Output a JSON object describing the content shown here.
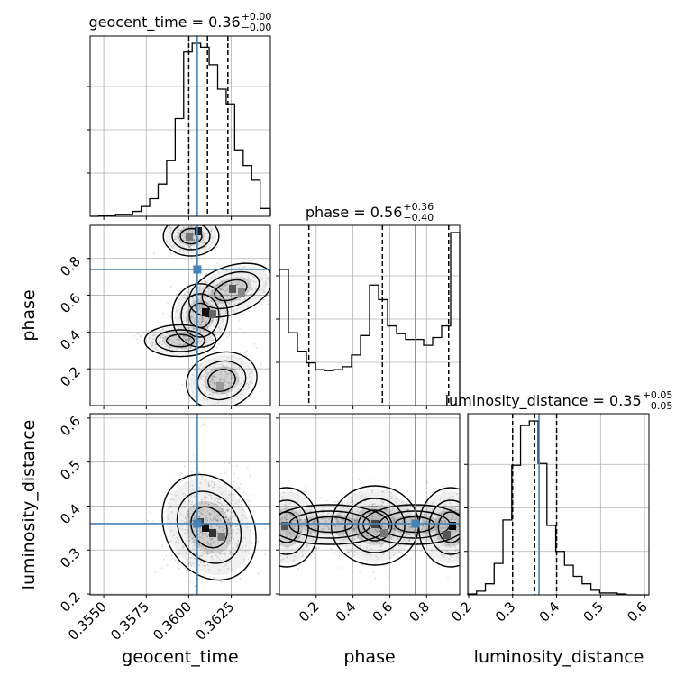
{
  "chart_data": {
    "type": "corner",
    "params": [
      "geocent_time",
      "phase",
      "luminosity_distance"
    ],
    "axis_labels": {
      "geocent_time": "geocent_time",
      "phase": "phase",
      "luminosity_distance": "luminosity_distance"
    },
    "ranges": {
      "geocent_time": [
        0.3542,
        0.3648
      ],
      "phase": [
        0.0,
        0.98
      ],
      "luminosity_distance": [
        0.198,
        0.61
      ]
    },
    "truths": {
      "geocent_time": 0.3605,
      "phase": 0.74,
      "luminosity_distance": 0.36
    },
    "ticks": {
      "geocent_time": {
        "values": [
          0.355,
          0.3575,
          0.36,
          0.3625
        ],
        "labels": [
          "0.3550",
          "0.3575",
          "0.3600",
          "0.3625"
        ]
      },
      "phase": {
        "values": [
          0.2,
          0.4,
          0.6,
          0.8
        ],
        "labels": [
          "0.2",
          "0.4",
          "0.6",
          "0.8"
        ]
      },
      "luminosity_distance": {
        "values": [
          0.2,
          0.3,
          0.4,
          0.5,
          0.6
        ],
        "labels": [
          "0.2",
          "0.3",
          "0.4",
          "0.5",
          "0.6"
        ]
      }
    },
    "titles": {
      "geocent_time": {
        "main": "geocent_time = 0.36",
        "sup": "+0.00",
        "sub": "−0.00"
      },
      "phase": {
        "main": "phase = 0.56",
        "sup": "+0.36",
        "sub": "−0.40"
      },
      "luminosity_distance": {
        "main": "luminosity_distance = 0.35",
        "sup": "+0.05",
        "sub": "−0.05"
      }
    },
    "quantiles": {
      "geocent_time": [
        0.36,
        0.3611,
        0.3623
      ],
      "phase": [
        0.16,
        0.56,
        0.92
      ],
      "luminosity_distance": [
        0.3,
        0.35,
        0.4
      ]
    },
    "histograms": {
      "geocent_time": {
        "edges": [
          0.3542,
          0.3547,
          0.3552,
          0.3557,
          0.3562,
          0.3567,
          0.3572,
          0.3577,
          0.3582,
          0.3587,
          0.3592,
          0.3597,
          0.3602,
          0.3607,
          0.3612,
          0.3617,
          0.3622,
          0.3627,
          0.3632,
          0.3637,
          0.3642,
          0.3648
        ],
        "counts": [
          0,
          1,
          1,
          2,
          2,
          5,
          10,
          18,
          33,
          57,
          100,
          168,
          177,
          173,
          155,
          130,
          115,
          68,
          52,
          37,
          8
        ]
      },
      "phase": {
        "edges": [
          0.0,
          0.049,
          0.098,
          0.147,
          0.196,
          0.245,
          0.294,
          0.343,
          0.392,
          0.441,
          0.49,
          0.539,
          0.588,
          0.637,
          0.686,
          0.735,
          0.784,
          0.833,
          0.882,
          0.931,
          0.98
        ],
        "counts": [
          140,
          75,
          56,
          44,
          37,
          36,
          37,
          40,
          52,
          72,
          124,
          109,
          82,
          74,
          68,
          68,
          62,
          70,
          82,
          178
        ]
      },
      "luminosity_distance": {
        "edges": [
          0.198,
          0.218,
          0.238,
          0.258,
          0.278,
          0.298,
          0.318,
          0.338,
          0.358,
          0.378,
          0.398,
          0.418,
          0.438,
          0.458,
          0.478,
          0.498,
          0.518,
          0.538,
          0.558,
          0.578,
          0.61
        ],
        "counts": [
          1,
          4,
          12,
          34,
          81,
          140,
          183,
          188,
          142,
          75,
          47,
          32,
          20,
          12,
          5,
          2,
          2,
          1,
          0,
          0
        ]
      }
    },
    "grid": true
  }
}
